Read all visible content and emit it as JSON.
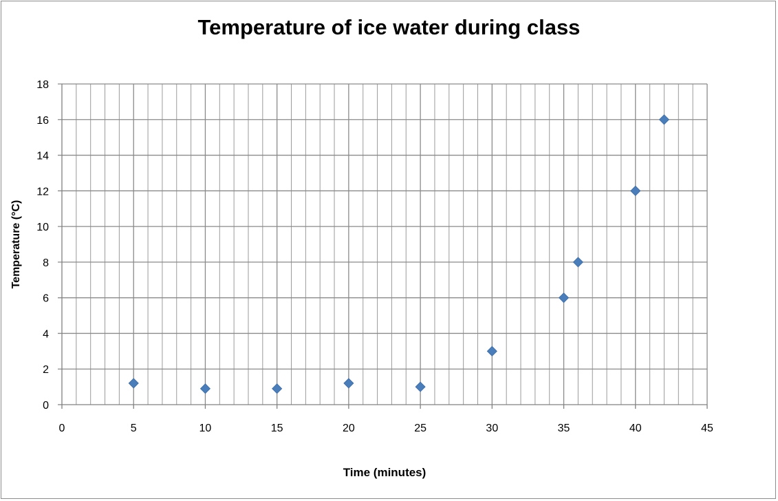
{
  "chart_data": {
    "type": "scatter",
    "title": "Temperature of ice water during class",
    "xlabel": "Time (minutes)",
    "ylabel": "Temperature (°C)",
    "xlim": [
      0,
      45
    ],
    "ylim": [
      0,
      18
    ],
    "x_major_ticks": [
      0,
      5,
      10,
      15,
      20,
      25,
      30,
      35,
      40,
      45
    ],
    "y_major_ticks": [
      0,
      2,
      4,
      6,
      8,
      10,
      12,
      14,
      16,
      18
    ],
    "x_minor_step": 1,
    "grid": true,
    "legend": "none",
    "marker": "diamond",
    "marker_color": "#4a7ebb",
    "points": [
      {
        "x": 5,
        "y": 1.2
      },
      {
        "x": 10,
        "y": 0.9
      },
      {
        "x": 15,
        "y": 0.9
      },
      {
        "x": 20,
        "y": 1.2
      },
      {
        "x": 25,
        "y": 1.0
      },
      {
        "x": 30,
        "y": 3.0
      },
      {
        "x": 35,
        "y": 6.0
      },
      {
        "x": 36,
        "y": 8.0
      },
      {
        "x": 40,
        "y": 12.0
      },
      {
        "x": 42,
        "y": 16.0
      }
    ]
  }
}
